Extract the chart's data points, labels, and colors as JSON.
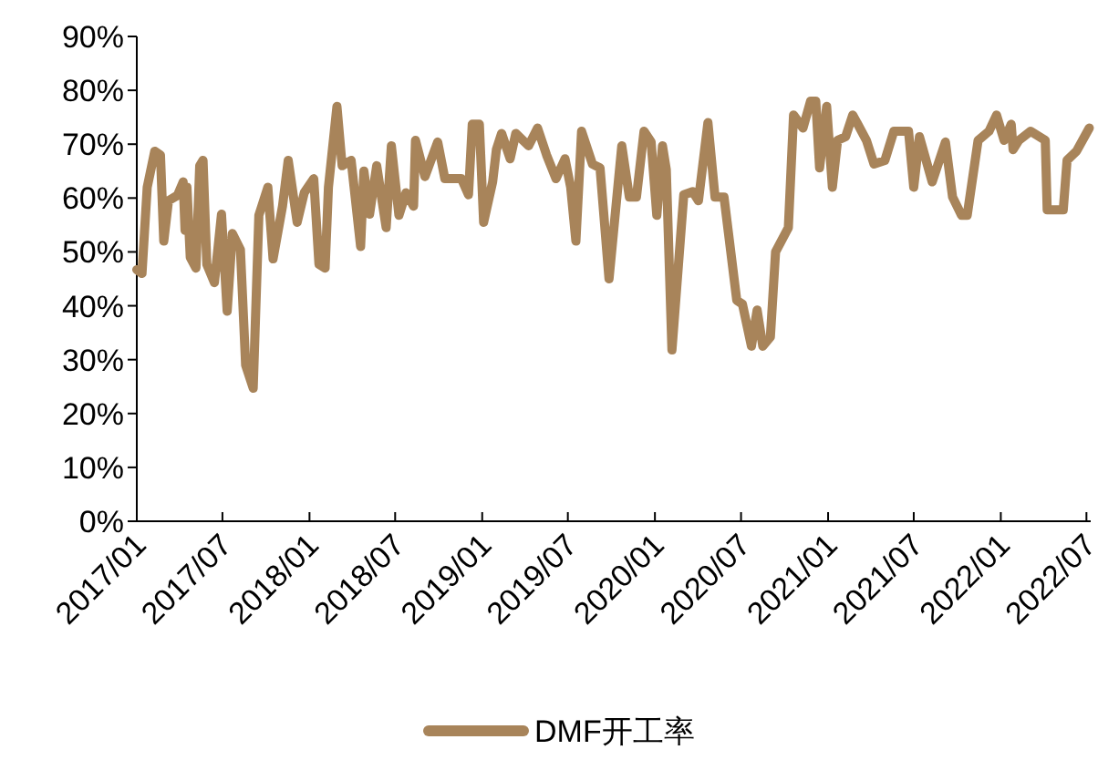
{
  "chart_data": {
    "type": "line",
    "xlim": [
      "2017-01-01",
      "2022-07-10"
    ],
    "ylim": [
      0,
      90
    ],
    "yticks": [
      {
        "value": 0,
        "label": "0%"
      },
      {
        "value": 10,
        "label": "10%"
      },
      {
        "value": 20,
        "label": "20%"
      },
      {
        "value": 30,
        "label": "30%"
      },
      {
        "value": 40,
        "label": "40%"
      },
      {
        "value": 50,
        "label": "50%"
      },
      {
        "value": 60,
        "label": "60%"
      },
      {
        "value": 70,
        "label": "70%"
      },
      {
        "value": 80,
        "label": "80%"
      },
      {
        "value": 90,
        "label": "90%"
      }
    ],
    "xticks": [
      {
        "value": "2017-01-01",
        "label": "2017/01"
      },
      {
        "value": "2017-07-01",
        "label": "2017/07"
      },
      {
        "value": "2018-01-01",
        "label": "2018/01"
      },
      {
        "value": "2018-07-01",
        "label": "2018/07"
      },
      {
        "value": "2019-01-01",
        "label": "2019/01"
      },
      {
        "value": "2019-07-01",
        "label": "2019/07"
      },
      {
        "value": "2020-01-01",
        "label": "2020/01"
      },
      {
        "value": "2020-07-01",
        "label": "2020/07"
      },
      {
        "value": "2021-01-01",
        "label": "2021/01"
      },
      {
        "value": "2021-07-01",
        "label": "2021/07"
      },
      {
        "value": "2022-01-01",
        "label": "2022/01"
      },
      {
        "value": "2022-07-01",
        "label": "2022/07"
      }
    ],
    "grid": false,
    "legend": "bottom",
    "marker": "none",
    "line_style": "solid",
    "series": [
      {
        "name": "DMF开工率",
        "color": "#a8845a",
        "x": [
          "2017-01-01",
          "2017-01-12",
          "2017-01-23",
          "2017-02-08",
          "2017-02-20",
          "2017-02-27",
          "2017-03-09",
          "2017-03-28",
          "2017-04-09",
          "2017-04-13",
          "2017-04-17",
          "2017-04-24",
          "2017-05-06",
          "2017-05-14",
          "2017-05-21",
          "2017-05-29",
          "2017-06-14",
          "2017-06-29",
          "2017-07-11",
          "2017-07-22",
          "2017-08-08",
          "2017-08-19",
          "2017-09-04",
          "2017-09-16",
          "2017-10-05",
          "2017-10-16",
          "2017-11-05",
          "2017-11-17",
          "2017-12-06",
          "2017-12-21",
          "2018-01-10",
          "2018-01-21",
          "2018-02-03",
          "2018-02-10",
          "2018-02-28",
          "2018-03-11",
          "2018-03-30",
          "2018-04-19",
          "2018-04-26",
          "2018-05-08",
          "2018-05-23",
          "2018-06-12",
          "2018-06-23",
          "2018-07-09",
          "2018-07-24",
          "2018-08-09",
          "2018-08-13",
          "2018-09-02",
          "2018-09-29",
          "2018-10-14",
          "2018-11-18",
          "2018-12-03",
          "2018-12-11",
          "2018-12-26",
          "2019-01-04",
          "2019-01-23",
          "2019-01-31",
          "2019-02-11",
          "2019-03-01",
          "2019-03-13",
          "2019-04-09",
          "2019-04-28",
          "2019-05-17",
          "2019-06-06",
          "2019-06-25",
          "2019-07-07",
          "2019-07-18",
          "2019-07-30",
          "2019-08-22",
          "2019-09-07",
          "2019-09-26",
          "2019-10-23",
          "2019-11-08",
          "2019-11-23",
          "2019-12-09",
          "2019-12-24",
          "2020-01-05",
          "2020-01-17",
          "2020-01-25",
          "2020-02-06",
          "2020-03-02",
          "2020-03-21",
          "2020-04-02",
          "2020-04-22",
          "2020-05-07",
          "2020-05-26",
          "2020-06-22",
          "2020-07-04",
          "2020-07-23",
          "2020-08-04",
          "2020-08-16",
          "2020-09-01",
          "2020-09-12",
          "2020-10-09",
          "2020-10-20",
          "2020-11-09",
          "2020-11-25",
          "2020-12-06",
          "2020-12-14",
          "2020-12-29",
          "2021-01-10",
          "2021-01-21",
          "2021-02-07",
          "2021-02-22",
          "2021-03-03",
          "2021-03-23",
          "2021-04-08",
          "2021-05-01",
          "2021-05-20",
          "2021-06-20",
          "2021-07-01",
          "2021-07-13",
          "2021-08-09",
          "2021-09-06",
          "2021-09-21",
          "2021-10-10",
          "2021-10-22",
          "2021-11-14",
          "2021-12-07",
          "2021-12-23",
          "2022-01-08",
          "2022-01-23",
          "2022-01-27",
          "2022-02-08",
          "2022-03-05",
          "2022-04-05",
          "2022-04-09",
          "2022-05-13",
          "2022-05-21",
          "2022-06-10",
          "2022-07-07"
        ],
        "values": [
          46.7,
          46,
          62,
          68.7,
          68,
          52,
          59.5,
          60.5,
          63,
          54,
          62,
          49,
          47,
          66,
          67,
          47.7,
          44.3,
          57,
          39,
          53.4,
          50.4,
          29,
          24.7,
          56.8,
          62,
          48.7,
          58.5,
          67,
          55.5,
          61,
          63.6,
          47.7,
          47,
          62,
          77,
          66,
          67,
          51,
          65,
          57,
          66,
          54.5,
          69.7,
          56.8,
          61,
          58.5,
          70.7,
          64,
          70.4,
          63.6,
          63.6,
          60.6,
          73.7,
          73.7,
          55.5,
          63,
          69,
          72,
          67.3,
          72,
          69.7,
          73,
          68,
          63.6,
          67.3,
          62,
          52,
          72.4,
          66.3,
          65.6,
          45,
          69.7,
          60.2,
          60.2,
          72.4,
          70.4,
          56.8,
          69.7,
          65.3,
          31.8,
          60.6,
          61.2,
          59.5,
          74,
          60.2,
          60.2,
          41,
          40.3,
          32.5,
          39.2,
          32.5,
          34.2,
          50,
          54.5,
          75.4,
          73,
          78,
          78,
          65.6,
          77,
          62,
          70.7,
          71.4,
          75.4,
          74,
          70.7,
          66.3,
          67,
          72.4,
          72.4,
          62,
          71.4,
          63,
          70.4,
          60.2,
          56.8,
          56.8,
          70.7,
          72.4,
          75.4,
          70.7,
          73.7,
          69,
          70.7,
          72.4,
          70.7,
          57.8,
          57.8,
          67,
          68.7,
          73
        ]
      }
    ]
  }
}
